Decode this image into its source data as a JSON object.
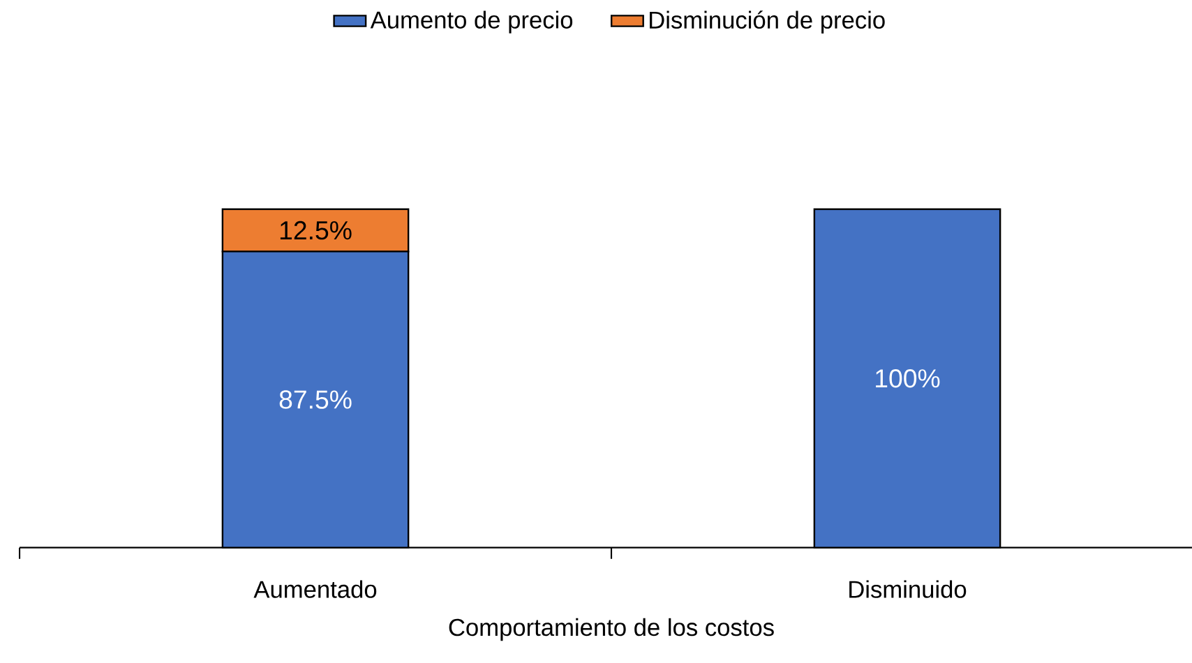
{
  "chart_data": {
    "type": "bar",
    "stacked": true,
    "xlabel": "Comportamiento de los costos",
    "categories": [
      "Aumentado",
      "Disminuido"
    ],
    "series": [
      {
        "name": "Aumento de precio",
        "color": "#4472c4",
        "values": [
          87.5,
          100
        ],
        "value_labels": [
          "87.5%",
          "100%"
        ]
      },
      {
        "name": "Disminución de precio",
        "color": "#ed7d31",
        "values": [
          12.5,
          0
        ],
        "value_labels": [
          "12.5%",
          null
        ]
      }
    ],
    "legend": "top",
    "grid": false,
    "tick_labels": "x"
  }
}
